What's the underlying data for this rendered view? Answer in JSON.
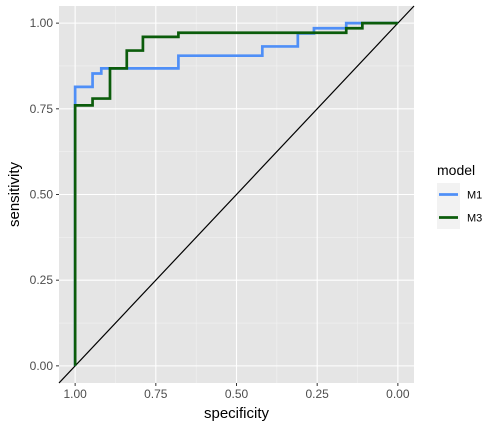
{
  "chart_data": {
    "type": "line",
    "xlabel": "specificity",
    "ylabel": "sensitivity",
    "x_reversed": true,
    "xlim": [
      1.05,
      -0.05
    ],
    "ylim": [
      -0.05,
      1.05
    ],
    "x_ticks": [
      1.0,
      0.75,
      0.5,
      0.25,
      0.0
    ],
    "x_tick_labels": [
      "1.00",
      "0.75",
      "0.50",
      "0.25",
      "0.00"
    ],
    "y_ticks": [
      0.0,
      0.25,
      0.5,
      0.75,
      1.0
    ],
    "y_tick_labels": [
      "0.00",
      "0.25",
      "0.50",
      "0.75",
      "1.00"
    ],
    "grid": true,
    "background": "#e5e5e5",
    "legend": {
      "title": "model",
      "position": "right",
      "entries": [
        {
          "label": "M1",
          "color": "#4f8ff7"
        },
        {
          "label": "M3",
          "color": "#0b5c0b"
        }
      ]
    },
    "reference_line": {
      "from": [
        1.0,
        0.0
      ],
      "to": [
        0.0,
        1.0
      ],
      "color": "#000000"
    },
    "series": [
      {
        "name": "M1",
        "color": "#4f8ff7",
        "x": [
          1.0,
          1.0,
          0.973,
          0.973,
          0.946,
          0.946,
          0.919,
          0.919,
          0.892,
          0.892,
          0.68,
          0.68,
          0.42,
          0.42,
          0.31,
          0.31,
          0.26,
          0.26,
          0.16,
          0.16,
          0.0
        ],
        "y": [
          0.0,
          0.814,
          0.814,
          0.814,
          0.814,
          0.853,
          0.853,
          0.868,
          0.868,
          0.868,
          0.868,
          0.905,
          0.905,
          0.932,
          0.932,
          0.97,
          0.97,
          0.985,
          0.985,
          1.0,
          1.0
        ]
      },
      {
        "name": "M3",
        "color": "#0b5c0b",
        "x": [
          1.0,
          1.0,
          0.946,
          0.946,
          0.892,
          0.892,
          0.84,
          0.84,
          0.79,
          0.79,
          0.68,
          0.68,
          0.16,
          0.16,
          0.11,
          0.11,
          0.0
        ],
        "y": [
          0.0,
          0.76,
          0.76,
          0.78,
          0.78,
          0.868,
          0.868,
          0.92,
          0.92,
          0.96,
          0.96,
          0.972,
          0.972,
          0.985,
          0.985,
          1.0,
          1.0
        ]
      }
    ]
  }
}
